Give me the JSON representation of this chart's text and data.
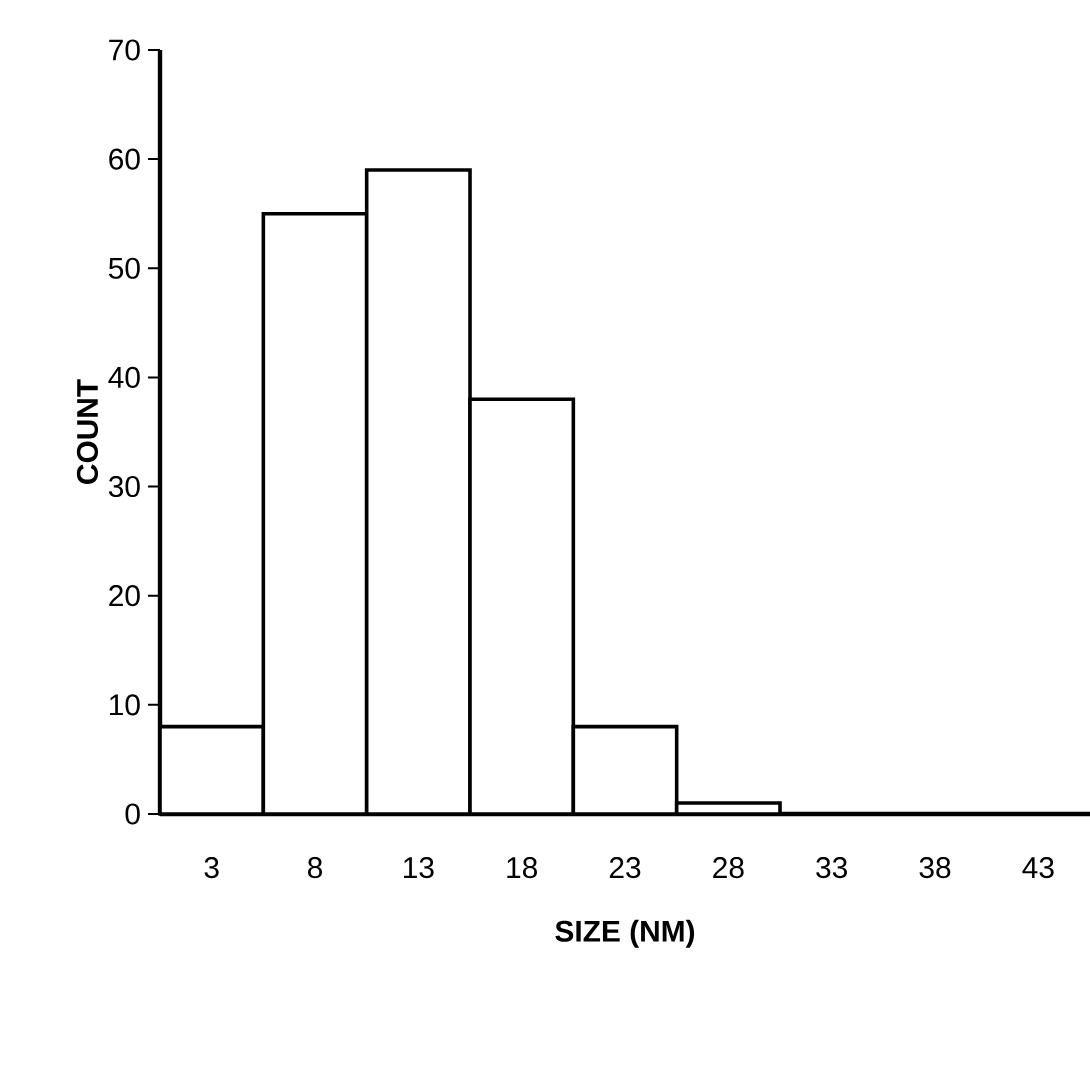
{
  "chart_data": {
    "type": "bar",
    "xlabel": "SIZE (NM)",
    "ylabel": "COUNT",
    "categories": [
      "3",
      "8",
      "13",
      "18",
      "23",
      "28",
      "33",
      "38",
      "43"
    ],
    "values": [
      8,
      55,
      59,
      38,
      8,
      1,
      0,
      0,
      0
    ],
    "color": "#ffffff",
    "ylim": [
      0,
      70
    ],
    "yticks": [
      0,
      10,
      20,
      30,
      40,
      50,
      60,
      70
    ]
  }
}
